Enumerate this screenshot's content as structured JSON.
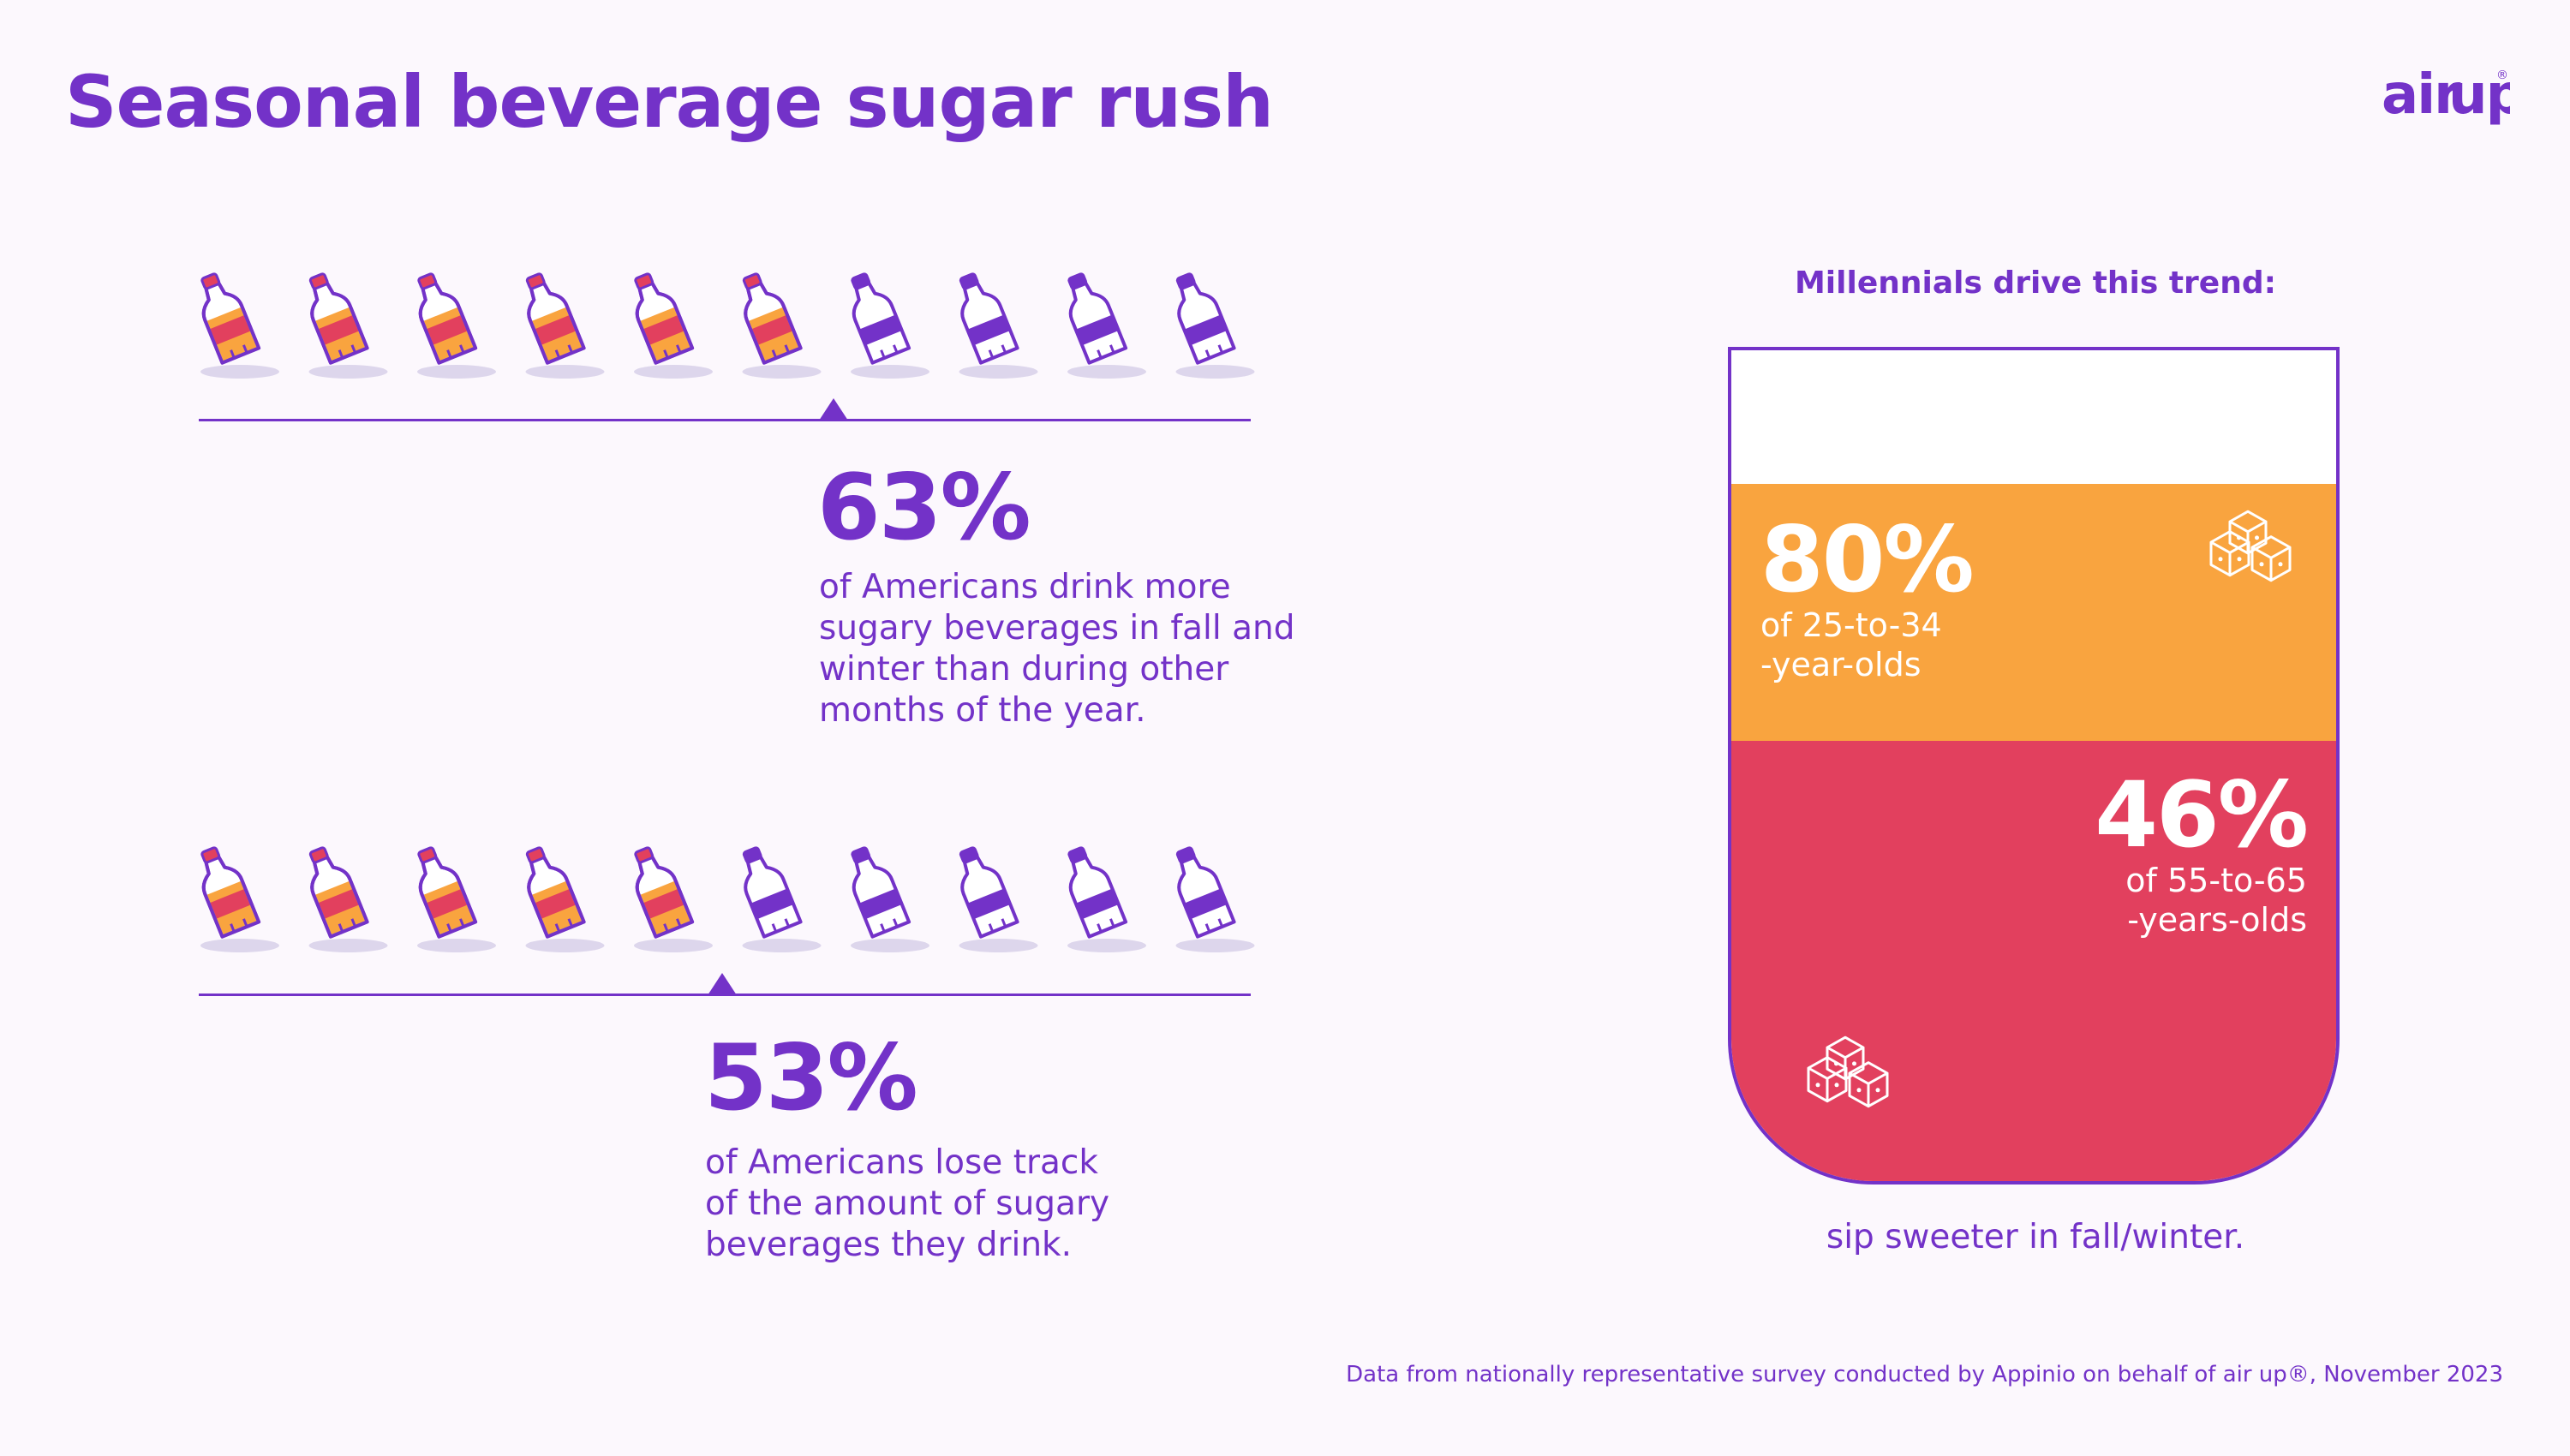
{
  "title": "Seasonal beverage sugar rush",
  "brand": "air up",
  "colors": {
    "purple": "#7332c8",
    "orange": "#f9a43f",
    "red": "#e2405e",
    "background": "#fcf8fd"
  },
  "chart_data": [
    {
      "type": "pictograph",
      "icon": "bottle",
      "total_icons": 10,
      "filled_icons": 6,
      "value_percent": 63,
      "value_label": "63%",
      "description": "of Americans drink more sugary beverages in fall and winter than during other months of the year."
    },
    {
      "type": "pictograph",
      "icon": "bottle",
      "total_icons": 10,
      "filled_icons": 5,
      "value_percent": 53,
      "value_label": "53%",
      "description": "of Americans lose track of the amount of sugary beverages they drink."
    },
    {
      "type": "glass",
      "title": "Millennials drive this trend:",
      "segments": [
        {
          "value_percent": 80,
          "label": "80%",
          "line1": "of 25-to-34",
          "line2": "-year-olds",
          "color": "#f9a43f"
        },
        {
          "value_percent": 46,
          "label": "46%",
          "line1": "of 55-to-65",
          "line2": "-years-olds",
          "color": "#e2405e"
        }
      ],
      "caption": "sip sweeter in fall/winter."
    }
  ],
  "footnote": "Data from nationally representative survey conducted by Appinio on behalf of air up®, November 2023"
}
